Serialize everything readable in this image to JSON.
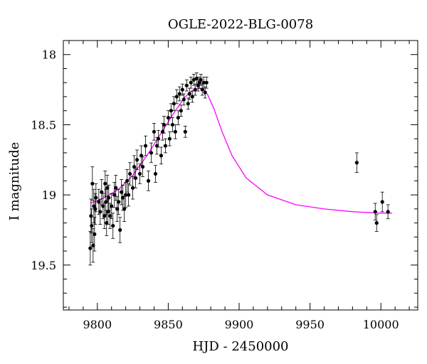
{
  "chart_data": {
    "type": "scatter",
    "title": "OGLE-2022-BLG-0078",
    "xlabel": "HJD - 2450000",
    "ylabel": "I magnitude",
    "xlim": [
      9776,
      10026
    ],
    "ylim": [
      19.82,
      17.9
    ],
    "y_inverted": true,
    "xticks": [
      9800,
      9850,
      9900,
      9950,
      10000
    ],
    "yticks": [
      18,
      18.5,
      19,
      19.5
    ],
    "xtick_labels": [
      "9800",
      "9850",
      "9900",
      "9950",
      "10000"
    ],
    "ytick_labels": [
      "18",
      "18.5",
      "19",
      "19.5"
    ],
    "x_minor_step": 10,
    "y_minor_step": 0.1,
    "grid": false,
    "model_color": "#ff00ff",
    "point_color": "#000000",
    "series": [
      {
        "kind": "points",
        "x": [
          9795,
          9795.5,
          9796,
          9796.5,
          9797,
          9797.5,
          9798,
          9798.5,
          9799,
          9801,
          9802,
          9803,
          9804,
          9805,
          9805.5,
          9806,
          9806.5,
          9807,
          9807.5,
          9808,
          9809,
          9810,
          9811,
          9812,
          9813,
          9814,
          9815,
          9816,
          9817,
          9818,
          9819,
          9820,
          9821,
          9822,
          9823,
          9825,
          9826,
          9827,
          9828,
          9830,
          9831,
          9832,
          9834,
          9836,
          9838,
          9840,
          9841,
          9842,
          9843,
          9845,
          9846,
          9847,
          9848,
          9850,
          9851,
          9852,
          9853,
          9854,
          9855,
          9856,
          9857,
          9858,
          9859,
          9860,
          9861,
          9862,
          9863,
          9864,
          9865,
          9866,
          9867,
          9868,
          9869,
          9870,
          9871,
          9872,
          9873,
          9874,
          9875,
          9876,
          9877,
          9983,
          9996,
          9997,
          10001,
          10005
        ],
        "y": [
          19.38,
          19.15,
          19.22,
          18.92,
          19.36,
          19.08,
          19.28,
          19.1,
          19.02,
          19.05,
          19.12,
          18.98,
          19.08,
          19.15,
          18.92,
          19.05,
          19.2,
          18.95,
          19.12,
          19.02,
          19.15,
          19.08,
          19.22,
          19.0,
          18.95,
          19.1,
          19.05,
          19.25,
          18.98,
          19.02,
          19.1,
          19.0,
          18.9,
          19.0,
          18.85,
          18.95,
          18.8,
          18.88,
          18.75,
          18.85,
          18.72,
          18.8,
          18.65,
          18.9,
          18.7,
          18.55,
          18.85,
          18.65,
          18.6,
          18.72,
          18.55,
          18.5,
          18.65,
          18.45,
          18.6,
          18.4,
          18.5,
          18.35,
          18.55,
          18.3,
          18.45,
          18.28,
          18.4,
          18.25,
          18.32,
          18.55,
          18.22,
          18.35,
          18.28,
          18.2,
          18.3,
          18.18,
          18.25,
          18.17,
          18.22,
          18.2,
          18.18,
          18.25,
          18.2,
          18.27,
          18.2,
          18.77,
          19.12,
          19.2,
          19.05,
          19.12
        ],
        "err": [
          0.12,
          0.12,
          0.12,
          0.12,
          0.12,
          0.12,
          0.12,
          0.11,
          0.1,
          0.09,
          0.09,
          0.09,
          0.09,
          0.09,
          0.09,
          0.09,
          0.09,
          0.09,
          0.09,
          0.09,
          0.09,
          0.09,
          0.09,
          0.09,
          0.09,
          0.09,
          0.09,
          0.09,
          0.09,
          0.09,
          0.09,
          0.09,
          0.08,
          0.08,
          0.08,
          0.08,
          0.08,
          0.07,
          0.07,
          0.07,
          0.07,
          0.07,
          0.07,
          0.07,
          0.07,
          0.06,
          0.06,
          0.06,
          0.06,
          0.06,
          0.06,
          0.06,
          0.05,
          0.05,
          0.05,
          0.05,
          0.05,
          0.05,
          0.05,
          0.05,
          0.05,
          0.05,
          0.04,
          0.04,
          0.04,
          0.04,
          0.04,
          0.04,
          0.04,
          0.04,
          0.04,
          0.04,
          0.04,
          0.04,
          0.04,
          0.04,
          0.04,
          0.04,
          0.04,
          0.04,
          0.04,
          0.07,
          0.06,
          0.06,
          0.07,
          0.05
        ]
      },
      {
        "kind": "model",
        "x": [
          9795,
          9805,
          9815,
          9825,
          9835,
          9845,
          9855,
          9862,
          9868,
          9872,
          9875,
          9878,
          9882,
          9888,
          9895,
          9905,
          9920,
          9940,
          9960,
          9980,
          10000,
          10008
        ],
        "y": [
          19.06,
          19.02,
          18.96,
          18.86,
          18.72,
          18.56,
          18.4,
          18.3,
          18.25,
          18.24,
          18.25,
          18.29,
          18.38,
          18.55,
          18.72,
          18.88,
          19.0,
          19.07,
          19.1,
          19.12,
          19.13,
          19.13
        ]
      }
    ]
  }
}
